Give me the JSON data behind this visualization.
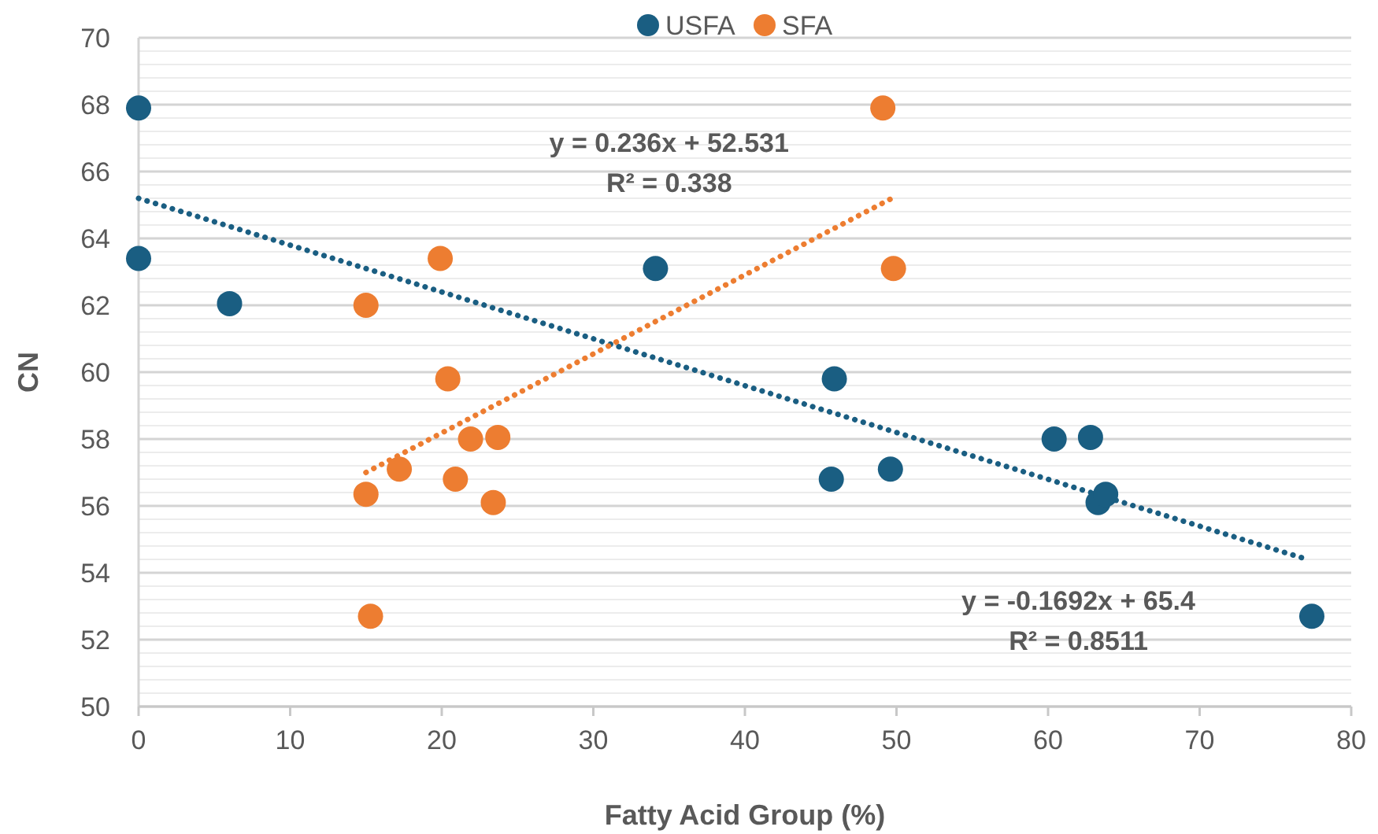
{
  "chart_data": {
    "type": "scatter",
    "xlabel": "Fatty Acid Group (%)",
    "ylabel": "CN",
    "xlim": [
      0,
      80
    ],
    "ylim": [
      50,
      70
    ],
    "xticks": [
      0,
      10,
      20,
      30,
      40,
      50,
      60,
      70,
      80
    ],
    "yticks": [
      50,
      52,
      54,
      56,
      58,
      60,
      62,
      64,
      66,
      68,
      70
    ],
    "grid": "y",
    "legend": "top",
    "marker": "circle",
    "series": [
      {
        "name": "USFA",
        "color": "#1a5e82",
        "x": [
          0,
          0,
          6.0,
          34.1,
          45.9,
          45.7,
          49.6,
          60.4,
          62.8,
          63.3,
          63.8,
          77.4
        ],
        "values": [
          67.9,
          63.4,
          62.05,
          63.1,
          59.8,
          56.8,
          57.1,
          58.0,
          58.05,
          56.1,
          56.35,
          52.7
        ]
      },
      {
        "name": "SFA",
        "color": "#ed7d31",
        "x": [
          49.1,
          19.9,
          15.0,
          49.8,
          20.4,
          21.9,
          23.7,
          17.2,
          20.9,
          15.0,
          23.4,
          15.3
        ],
        "values": [
          67.9,
          63.4,
          62.0,
          63.1,
          59.8,
          58.0,
          58.05,
          57.1,
          56.8,
          56.35,
          56.1,
          52.7
        ]
      },
      {
        "type": "line",
        "color": "#1a5e82",
        "line_style": "dotted",
        "marker": "none",
        "x": [
          0,
          77.1
        ],
        "values": [
          65.2,
          54.4
        ]
      },
      {
        "type": "line",
        "color": "#ed7d31",
        "line_style": "dotted",
        "marker": "none",
        "x": [
          15.0,
          49.7
        ],
        "values": [
          57.0,
          65.2
        ]
      }
    ],
    "annotations": [
      "y = 0.236x + 52.531",
      "R² = 0.338",
      "y = -0.1692x + 65.4",
      "R² = 0.8511"
    ]
  }
}
